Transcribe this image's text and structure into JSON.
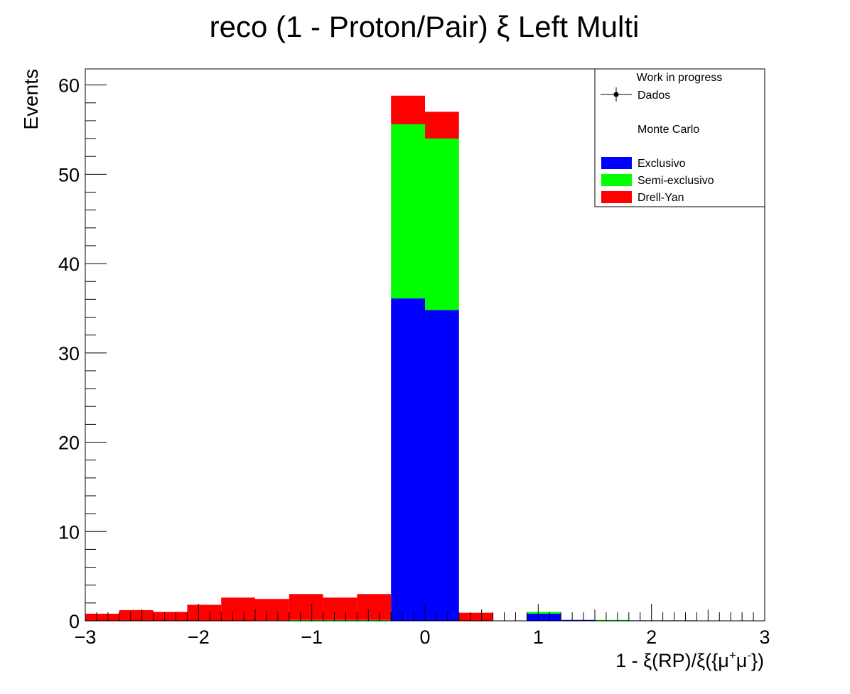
{
  "chart_data": {
    "type": "bar",
    "stacked": true,
    "title": "reco (1 - Proton/Pair)  ξ Left Multi",
    "xlabel_parts": {
      "base": "1 - ξ(RP)/ξ({μ",
      "sup1": "+",
      "mid": "μ",
      "sup2": "-",
      "end": "})"
    },
    "ylabel": "Events",
    "xlim": [
      -3,
      3
    ],
    "ylim": [
      0,
      61.8
    ],
    "bin_width": 0.3,
    "x_ticks": [
      -3,
      -2,
      -1,
      0,
      1,
      2,
      3
    ],
    "x_tick_labels": [
      "−3",
      "−2",
      "−1",
      "0",
      "1",
      "2",
      "3"
    ],
    "y_ticks": [
      0,
      10,
      20,
      30,
      40,
      50,
      60
    ],
    "y_tick_labels": [
      "0",
      "10",
      "20",
      "30",
      "40",
      "50",
      "60"
    ],
    "bin_edges_start": [
      -3.0,
      -2.7,
      -2.4,
      -2.1,
      -1.8,
      -1.5,
      -1.2,
      -0.9,
      -0.6,
      -0.3,
      0.0,
      0.3,
      0.6,
      0.9,
      1.2,
      1.5,
      1.8,
      2.1,
      2.4,
      2.7
    ],
    "series": [
      {
        "name": "Exclusivo",
        "color": "#0000ff",
        "values": [
          0,
          0,
          0,
          0,
          0,
          0,
          0,
          0,
          0,
          36.1,
          34.8,
          0,
          0,
          0.8,
          0.1,
          0.05,
          0.05,
          0.05,
          0,
          0
        ]
      },
      {
        "name": "Semi-exclusivo",
        "color": "#00ff00",
        "values": [
          0,
          0,
          0,
          0,
          0,
          0.05,
          0.1,
          0.1,
          0.1,
          19.5,
          19.2,
          0,
          0,
          0.2,
          0,
          0.05,
          0,
          0,
          0,
          0
        ]
      },
      {
        "name": "Drell-Yan",
        "color": "#ff0000",
        "values": [
          0.8,
          1.2,
          1.0,
          1.8,
          2.6,
          2.4,
          2.9,
          2.5,
          2.9,
          3.2,
          3.0,
          0.9,
          0,
          0,
          0,
          0,
          0,
          0,
          0,
          0
        ]
      }
    ],
    "legend": {
      "placement": "top-right",
      "header": "Work in progress",
      "data_label": "Dados",
      "mc_label": "Monte Carlo",
      "entries": [
        "Exclusivo",
        "Semi-exclusivo",
        "Drell-Yan"
      ]
    },
    "grid": false
  }
}
